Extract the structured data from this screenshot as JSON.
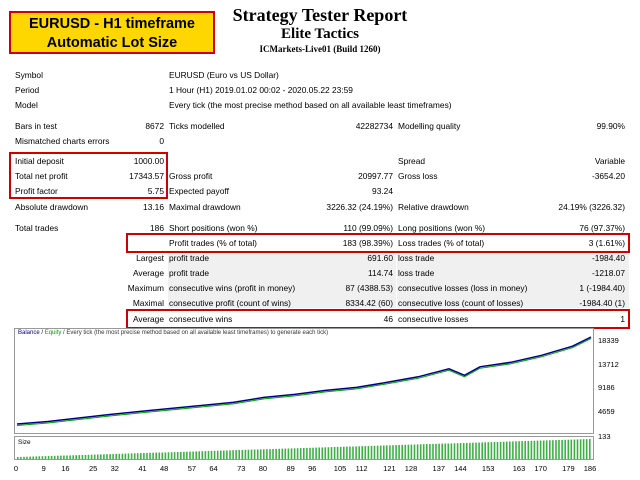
{
  "badge": {
    "line1": "EURUSD - H1 timeframe",
    "line2": "Automatic Lot Size"
  },
  "header": {
    "title": "Strategy Tester Report",
    "subtitle": "Elite Tactics",
    "server": "ICMarkets-Live01 (Build 1260)"
  },
  "info": {
    "symbol_label": "Symbol",
    "symbol": "EURUSD (Euro vs US Dollar)",
    "period_label": "Period",
    "period": "1 Hour (H1) 2019.01.02 00:02 - 2020.05.22 23:59",
    "model_label": "Model",
    "model": "Every tick (the most precise method based on all available least timeframes)"
  },
  "stats": {
    "bars_label": "Bars in test",
    "bars": "8672",
    "ticks_label": "Ticks modelled",
    "ticks": "42282734",
    "quality_label": "Modelling quality",
    "quality": "99.90%",
    "mismatch_label": "Mismatched charts errors",
    "mismatch": "0",
    "deposit_label": "Initial deposit",
    "deposit": "1000.00",
    "spread_label": "Spread",
    "spread": "Variable",
    "net_label": "Total net profit",
    "net": "17343.57",
    "gprofit_label": "Gross profit",
    "gprofit": "20997.77",
    "gloss_label": "Gross loss",
    "gloss": "-3654.20",
    "pf_label": "Profit factor",
    "pf": "5.75",
    "payoff_label": "Expected payoff",
    "payoff": "93.24",
    "absdd_label": "Absolute drawdown",
    "absdd": "13.16",
    "maxdd_label": "Maximal drawdown",
    "maxdd": "3226.32 (24.19%)",
    "reldd_label": "Relative drawdown",
    "reldd": "24.19% (3226.32)",
    "trades_label": "Total trades",
    "trades": "186",
    "short_label": "Short positions (won %)",
    "short": "110 (99.09%)",
    "long_label": "Long positions (won %)",
    "long": "76 (97.37%)",
    "ptrades_label": "Profit trades (% of total)",
    "ptrades": "183 (98.39%)",
    "ltrades_label": "Loss trades (% of total)",
    "ltrades": "3 (1.61%)",
    "largest_label": "Largest",
    "lp_label": "profit trade",
    "lp": "691.60",
    "ll_label": "loss trade",
    "ll": "-1984.40",
    "average_label": "Average",
    "ap_label": "profit trade",
    "ap": "114.74",
    "al_label": "loss trade",
    "al": "-1218.07",
    "maximum_label": "Maximum",
    "mcw_label": "consecutive wins (profit in money)",
    "mcw": "87 (4388.53)",
    "mcl_label": "consecutive losses (loss in money)",
    "mcl": "1 (-1984.40)",
    "maximal_label": "Maximal",
    "mcp_label": "consecutive profit (count of wins)",
    "mcp": "8334.42 (60)",
    "mclc_label": "consecutive loss (count of losses)",
    "mclc": "-1984.40 (1)",
    "avg2_label": "Average",
    "acw_label": "consecutive wins",
    "acw": "46",
    "acl_label": "consecutive losses",
    "acl": "1"
  },
  "chart_data": {
    "type": "line",
    "legend": {
      "balance": "Balance",
      "sep": " / ",
      "equity": "Equity",
      "rest": " / Every tick (the most precise method based on all available least timeframes) to generate each tick)"
    },
    "balance_color": "#00008b",
    "equity_color": "#00a000",
    "x": [
      0,
      10,
      20,
      30,
      40,
      50,
      60,
      70,
      80,
      90,
      100,
      110,
      120,
      130,
      140,
      145,
      150,
      160,
      170,
      180,
      186
    ],
    "balance": [
      1000,
      1500,
      2200,
      2900,
      3500,
      4100,
      4700,
      5300,
      6300,
      6900,
      7700,
      8300,
      9300,
      10400,
      12000,
      10700,
      12400,
      13300,
      14700,
      16500,
      18339
    ],
    "ylim": [
      0,
      18339
    ],
    "yticks": [
      "18339",
      "13712",
      "9186",
      "4659"
    ],
    "size_label": "Size",
    "size_tick": "133",
    "xticks": [
      "0",
      "9",
      "16",
      "25",
      "32",
      "41",
      "48",
      "57",
      "64",
      "73",
      "80",
      "89",
      "96",
      "105",
      "112",
      "121",
      "128",
      "137",
      "144",
      "153",
      "163",
      "170",
      "179",
      "186"
    ]
  }
}
